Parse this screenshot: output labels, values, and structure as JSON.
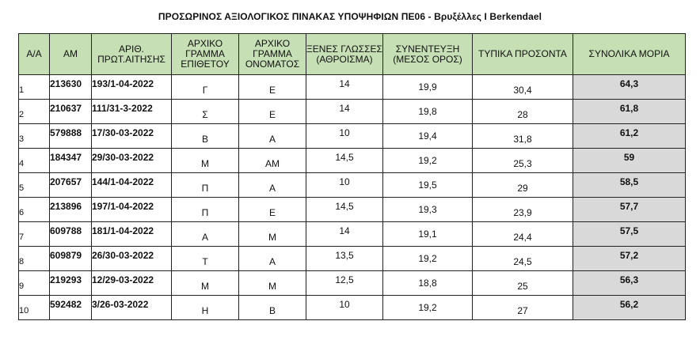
{
  "title": "ΠΡΟΣΩΡΙΝΟΣ ΑΞΙΟΛΟΓΙΚΟΣ ΠΙΝΑΚΑΣ ΥΠΟΨΗΦΙΩΝ ΠΕ06 - Βρυξέλλες I Berkendael",
  "headers": {
    "aa": "Α/Α",
    "am": "ΑΜ",
    "prot": "ΑΡΙΘ. ΠΡΩΤ.ΑΙΤΗΣΗΣ",
    "surname": "ΑΡΧΙΚΟ ΓΡΑΜΜΑ ΕΠΙΘΕΤΟΥ",
    "name": "ΑΡΧΙΚΟ ΓΡΑΜΜΑ ΟΝΟΜΑΤΟΣ",
    "languages": "ΞΕΝΕΣ ΓΛΩΣΣΕΣ (ΑΘΡΟΙΣΜΑ)",
    "interview": "ΣΥΝΕΝΤΕΥΞΗ (ΜΕΣΟΣ ΟΡΟΣ)",
    "formal": "ΤΥΠΙΚΑ ΠΡΟΣΟΝΤΑ",
    "total": "ΣΥΝΟΛΙΚΑ ΜΟΡΙΑ"
  },
  "rows": [
    {
      "aa": "1",
      "am": "213630",
      "prot": "193/1-04-2022",
      "surname": "Γ",
      "name": "Ε",
      "languages": "14",
      "interview": "19,9",
      "formal": "30,4",
      "total": "64,3"
    },
    {
      "aa": "2",
      "am": "210637",
      "prot": "111/31-3-2022",
      "surname": "Σ",
      "name": "Ε",
      "languages": "14",
      "interview": "19,8",
      "formal": "28",
      "total": "61,8"
    },
    {
      "aa": "3",
      "am": "579888",
      "prot": "17/30-03-2022",
      "surname": "Β",
      "name": "Α",
      "languages": "10",
      "interview": "19,4",
      "formal": "31,8",
      "total": "61,2"
    },
    {
      "aa": "4",
      "am": "184347",
      "prot": "29/30-03-2022",
      "surname": "Μ",
      "name": "ΑΜ",
      "languages": "14,5",
      "interview": "19,2",
      "formal": "25,3",
      "total": "59"
    },
    {
      "aa": "5",
      "am": "207657",
      "prot": "144/1-04-2022",
      "surname": "Π",
      "name": "Α",
      "languages": "10",
      "interview": "19,5",
      "formal": "29",
      "total": "58,5"
    },
    {
      "aa": "6",
      "am": "213896",
      "prot": "197/1-04-2022",
      "surname": "Π",
      "name": "Ε",
      "languages": "14,5",
      "interview": "19,3",
      "formal": "23,9",
      "total": "57,7"
    },
    {
      "aa": "7",
      "am": "609788",
      "prot": "181/1-04-2022",
      "surname": "Α",
      "name": "Μ",
      "languages": "14",
      "interview": "19,1",
      "formal": "24,4",
      "total": "57,5"
    },
    {
      "aa": "8",
      "am": "609879",
      "prot": "26/30-03-2022",
      "surname": "Τ",
      "name": "Α",
      "languages": "13,5",
      "interview": "19,2",
      "formal": "24,5",
      "total": "57,2"
    },
    {
      "aa": "9",
      "am": "219293",
      "prot": "12/29-03-2022",
      "surname": "Μ",
      "name": "Μ",
      "languages": "12,5",
      "interview": "18,8",
      "formal": "25",
      "total": "56,3"
    },
    {
      "aa": "10",
      "am": "592482",
      "prot": "3/26-03-2022",
      "surname": "Η",
      "name": "Β",
      "languages": "10",
      "interview": "19,2",
      "formal": "27",
      "total": "56,2"
    }
  ]
}
